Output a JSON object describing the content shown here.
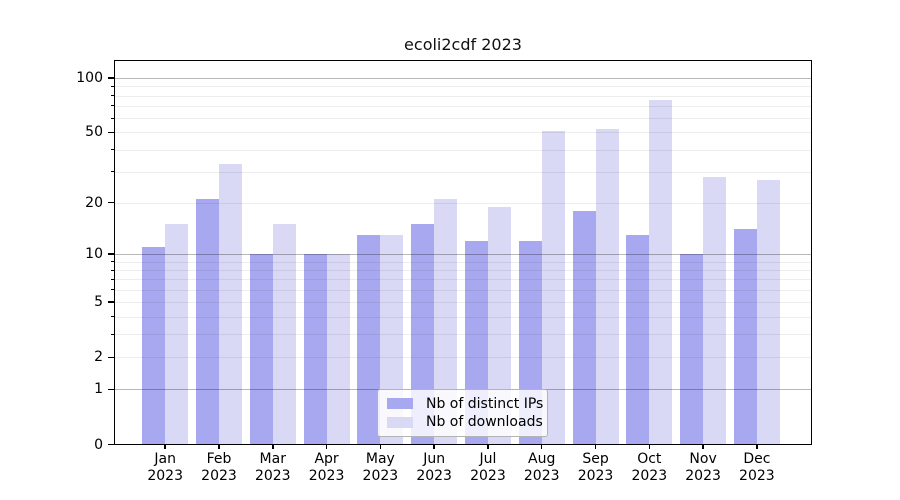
{
  "chart_data": {
    "type": "bar",
    "title": "ecoli2cdf 2023",
    "categories": [
      {
        "month": "Jan",
        "year": "2023"
      },
      {
        "month": "Feb",
        "year": "2023"
      },
      {
        "month": "Mar",
        "year": "2023"
      },
      {
        "month": "Apr",
        "year": "2023"
      },
      {
        "month": "May",
        "year": "2023"
      },
      {
        "month": "Jun",
        "year": "2023"
      },
      {
        "month": "Jul",
        "year": "2023"
      },
      {
        "month": "Aug",
        "year": "2023"
      },
      {
        "month": "Sep",
        "year": "2023"
      },
      {
        "month": "Oct",
        "year": "2023"
      },
      {
        "month": "Nov",
        "year": "2023"
      },
      {
        "month": "Dec",
        "year": "2023"
      }
    ],
    "series": [
      {
        "name": "Nb of distinct IPs",
        "color": "#a8a8f0",
        "values": [
          11,
          21,
          10,
          10,
          13,
          15,
          12,
          12,
          18,
          13,
          10,
          14
        ]
      },
      {
        "name": "Nb of downloads",
        "color": "#d9d9f6",
        "values": [
          15,
          33,
          15,
          10,
          13,
          21,
          19,
          51,
          52,
          76,
          28,
          27
        ]
      }
    ],
    "y_axis": {
      "scale": "log1p",
      "ylim": [
        0,
        126.5
      ],
      "labeled_ticks": [
        0,
        1,
        2,
        5,
        10,
        20,
        50,
        100
      ],
      "major_gridlines": [
        1,
        10,
        100
      ],
      "minor_gridlines": [
        2,
        3,
        4,
        5,
        6,
        7,
        8,
        9,
        20,
        30,
        40,
        50,
        60,
        70,
        80,
        90
      ],
      "minor_axis_ticks": [
        3,
        4,
        6,
        7,
        8,
        9,
        30,
        40,
        60,
        70,
        80,
        90
      ]
    },
    "legend": {
      "position": "bottom-center",
      "entries": [
        "Nb of distinct IPs",
        "Nb of downloads"
      ]
    },
    "grid": true,
    "colors": {
      "major_grid": "rgba(0,0,0,0.28)",
      "minor_grid": "rgba(0,0,0,0.07)",
      "axis": "#000000"
    }
  }
}
